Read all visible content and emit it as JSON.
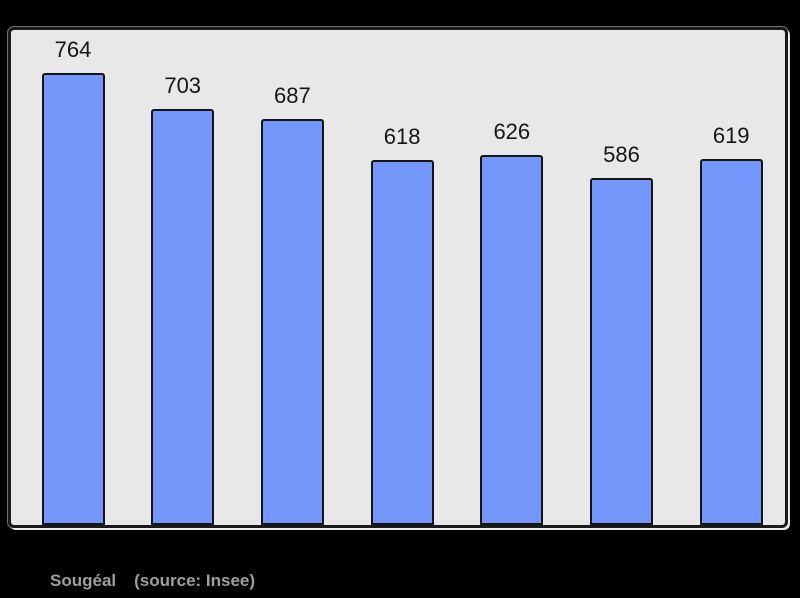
{
  "chart_data": {
    "type": "bar",
    "values": [
      764,
      703,
      687,
      618,
      626,
      586,
      619
    ],
    "bar_value_labels": [
      "764",
      "703",
      "687",
      "618",
      "626",
      "586",
      "619"
    ],
    "title": "",
    "xlabel": "",
    "ylabel": "",
    "ylim": [
      0,
      837
    ],
    "grid": false,
    "legend": null,
    "bar_color": "#7397fa",
    "bar_border_color": "#141414",
    "plot_background": "#e8e8e8",
    "plot_border_color": "#1a1a1a",
    "value_label_color": "#161616",
    "page_background": "#000000"
  },
  "footer": {
    "place_label": "Sougéal",
    "source_label": "(source: Insee)",
    "text_color": "#9e9e9e"
  }
}
